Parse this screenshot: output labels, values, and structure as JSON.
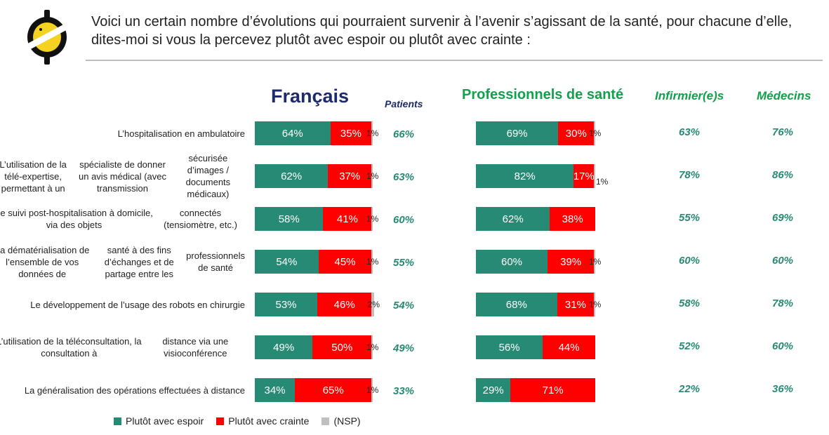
{
  "question": "Voici un certain nombre d’évolutions qui pourraient survenir à l’avenir s’agissant de la santé, pour chacune d’elle, dites-moi si vous la percevez plutôt avec espoir ou plutôt avec crainte :",
  "colors": {
    "hope": "#278a74",
    "fear": "#ff0000",
    "nsp": "#bfbfbf",
    "navy": "#1e2a6b",
    "green": "#12a04a"
  },
  "chart_data": {
    "type": "bar",
    "orientation": "horizontal-stacked",
    "headers": {
      "francais": "Français",
      "patients": "Patients",
      "professionnels": "Professionnels de santé",
      "infirmiers": "Infirmier(e)s",
      "medecins": "Médecins"
    },
    "legend": [
      {
        "key": "hope",
        "label": "Plutôt avec espoir"
      },
      {
        "key": "fear",
        "label": "Plutôt avec crainte"
      },
      {
        "key": "nsp",
        "label": "(NSP)"
      }
    ],
    "legend_position": "bottom-left",
    "rows": [
      {
        "label": [
          "L’hospitalisation en ambulatoire"
        ],
        "francais": {
          "hope": 64,
          "fear": 35,
          "nsp": 1,
          "hope_label": "64%",
          "fear_label": "35%",
          "nsp_label": "1%"
        },
        "patients": "66%",
        "pro": {
          "hope": 69,
          "fear": 30,
          "nsp": 1,
          "hope_label": "69%",
          "fear_label": "30%",
          "nsp_label": "1%"
        },
        "infirmiers": "63%",
        "medecins": "76%"
      },
      {
        "label": [
          "L’utilisation de la télé-expertise, permettant à un",
          "spécialiste de donner un avis médical (avec transmission",
          "sécurisée d’images / documents médicaux)"
        ],
        "francais": {
          "hope": 62,
          "fear": 37,
          "nsp": 1,
          "hope_label": "62%",
          "fear_label": "37%",
          "nsp_label": "1%"
        },
        "patients": "63%",
        "pro": {
          "hope": 82,
          "fear": 17,
          "nsp": 1,
          "hope_label": "82%",
          "fear_label": "17%",
          "nsp_label": "1%"
        },
        "infirmiers": "78%",
        "medecins": "86%"
      },
      {
        "label": [
          "Le suivi post-hospitalisation à domicile, via des objets",
          "connectés (tensiomètre, etc.)"
        ],
        "francais": {
          "hope": 58,
          "fear": 41,
          "nsp": 1,
          "hope_label": "58%",
          "fear_label": "41%",
          "nsp_label": "1%"
        },
        "patients": "60%",
        "pro": {
          "hope": 62,
          "fear": 38,
          "nsp": 0,
          "hope_label": "62%",
          "fear_label": "38%",
          "nsp_label": ""
        },
        "infirmiers": "55%",
        "medecins": "69%"
      },
      {
        "label": [
          "La dématérialisation de l’ensemble de vos données de",
          "santé à des fins d’échanges et de partage entre les",
          "professionnels de santé"
        ],
        "francais": {
          "hope": 54,
          "fear": 45,
          "nsp": 1,
          "hope_label": "54%",
          "fear_label": "45%",
          "nsp_label": "1%"
        },
        "patients": "55%",
        "pro": {
          "hope": 60,
          "fear": 39,
          "nsp": 1,
          "hope_label": "60%",
          "fear_label": "39%",
          "nsp_label": "1%"
        },
        "infirmiers": "60%",
        "medecins": "60%"
      },
      {
        "label": [
          "Le développement de l’usage des robots en chirurgie"
        ],
        "francais": {
          "hope": 53,
          "fear": 46,
          "nsp": 2,
          "hope_label": "53%",
          "fear_label": "46%",
          "nsp_label": "2%"
        },
        "patients": "54%",
        "pro": {
          "hope": 68,
          "fear": 31,
          "nsp": 1,
          "hope_label": "68%",
          "fear_label": "31%",
          "nsp_label": "1%"
        },
        "infirmiers": "58%",
        "medecins": "78%"
      },
      {
        "label": [
          "L’utilisation de la téléconsultation, la consultation à",
          "distance via une visioconférence"
        ],
        "francais": {
          "hope": 49,
          "fear": 50,
          "nsp": 1,
          "hope_label": "49%",
          "fear_label": "50%",
          "nsp_label": "1%"
        },
        "patients": "49%",
        "pro": {
          "hope": 56,
          "fear": 44,
          "nsp": 0,
          "hope_label": "56%",
          "fear_label": "44%",
          "nsp_label": ""
        },
        "infirmiers": "52%",
        "medecins": "60%"
      },
      {
        "label": [
          "La généralisation des opérations effectuées à distance"
        ],
        "francais": {
          "hope": 34,
          "fear": 65,
          "nsp": 1,
          "hope_label": "34%",
          "fear_label": "65%",
          "nsp_label": "1%"
        },
        "patients": "33%",
        "pro": {
          "hope": 29,
          "fear": 71,
          "nsp": 0,
          "hope_label": "29%",
          "fear_label": "71%",
          "nsp_label": ""
        },
        "infirmiers": "22%",
        "medecins": "36%"
      }
    ]
  }
}
